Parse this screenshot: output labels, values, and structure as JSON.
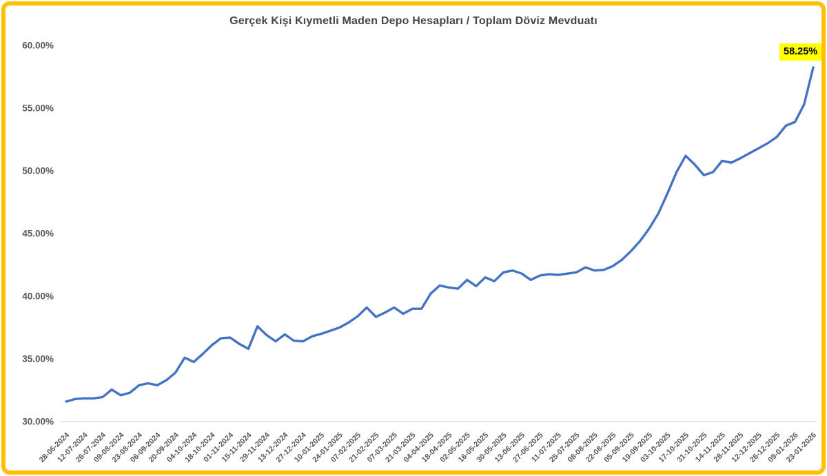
{
  "title": "Gerçek Kişi Kıymetli Maden Depo Hesapları / Toplam Döviz Mevduatı",
  "end_label": "58.25%",
  "colors": {
    "line": "#4472C4",
    "frame_border": "#FFC000",
    "highlight_bg": "#FFFF00",
    "highlight_text": "#000000",
    "title_text": "#454545",
    "axis_text": "#595959",
    "gridline": "#D9D9D9",
    "background": "#FFFFFF"
  },
  "chart_data": {
    "type": "line",
    "title": "Gerçek Kişi Kıymetli Maden Depo Hesapları / Toplam Döviz Mevduatı",
    "xlabel": "",
    "ylabel": "",
    "ylim": [
      30,
      60
    ],
    "y_ticks": [
      30,
      35,
      40,
      45,
      50,
      55,
      60
    ],
    "y_tick_labels": [
      "30.00%",
      "35.00%",
      "40.00%",
      "45.00%",
      "50.00%",
      "55.00%",
      "60.00%"
    ],
    "grid": "bottom-axis-line-only",
    "legend": "none",
    "points_per_x_tick": 2,
    "x_tick_labels": [
      "28-06-2024",
      "12-07-2024",
      "26-07-2024",
      "09-08-2024",
      "23-08-2024",
      "06-09-2024",
      "20-09-2024",
      "04-10-2024",
      "18-10-2024",
      "01-11-2024",
      "15-11-2024",
      "29-11-2024",
      "13-12-2024",
      "27-12-2024",
      "10-01-2025",
      "24-01-2025",
      "07-02-2025",
      "21-02-2025",
      "07-03-2025",
      "21-03-2025",
      "04-04-2025",
      "18-04-2025",
      "02-05-2025",
      "16-05-2025",
      "30-05-2025",
      "13-06-2025",
      "27-06-2025",
      "11-07-2025",
      "25-07-2025",
      "08-08-2025",
      "22-08-2025",
      "05-09-2025",
      "19-09-2025",
      "03-10-2025",
      "17-10-2025",
      "31-10-2025",
      "14-11-2025",
      "28-11-2025",
      "12-12-2025",
      "26-12-2025",
      "09-01-2026",
      "23-01-2026"
    ],
    "values": [
      31.6,
      31.8,
      31.85,
      31.85,
      31.95,
      32.55,
      32.1,
      32.3,
      32.9,
      33.05,
      32.9,
      33.3,
      33.9,
      35.1,
      34.75,
      35.4,
      36.1,
      36.65,
      36.7,
      36.2,
      35.8,
      37.6,
      36.9,
      36.4,
      36.95,
      36.45,
      36.4,
      36.8,
      37.0,
      37.25,
      37.5,
      37.9,
      38.4,
      39.1,
      38.35,
      38.7,
      39.1,
      38.6,
      39.0,
      39.0,
      40.2,
      40.85,
      40.7,
      40.6,
      41.3,
      40.8,
      41.5,
      41.2,
      41.9,
      42.05,
      41.8,
      41.3,
      41.65,
      41.75,
      41.7,
      41.8,
      41.9,
      42.3,
      42.05,
      42.1,
      42.4,
      42.9,
      43.6,
      44.4,
      45.4,
      46.6,
      48.2,
      49.9,
      51.2,
      50.5,
      49.65,
      49.9,
      50.8,
      50.65,
      51.0,
      51.4,
      51.8,
      52.2,
      52.7,
      53.6,
      53.9,
      55.3,
      58.25
    ],
    "annotation": {
      "text": "58.25%",
      "highlight": "#FFFF00",
      "position": "last-point"
    }
  }
}
